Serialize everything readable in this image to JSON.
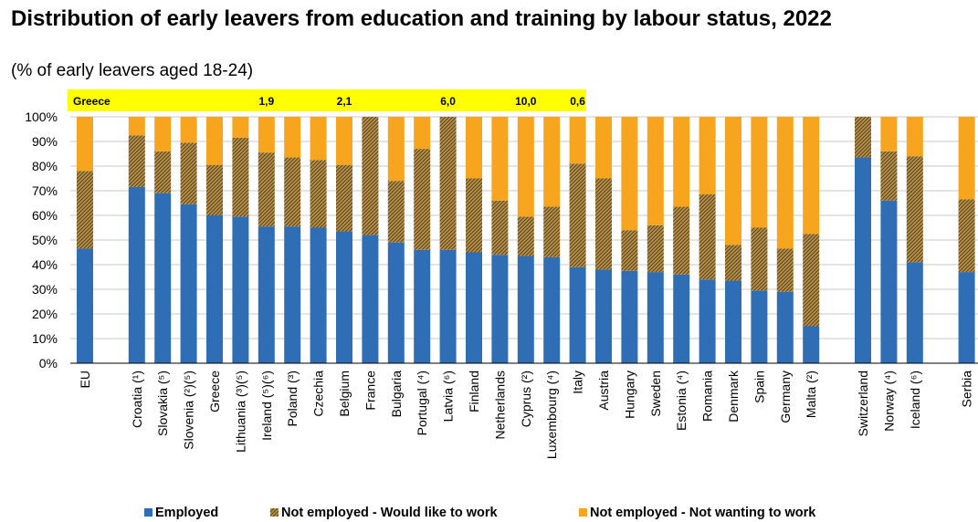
{
  "title": "Distribution of early leavers from education and training by labour status, 2022",
  "subtitle": "(% of early leavers aged 18-24)",
  "colors": {
    "employed": "#2f6db5",
    "would_like": "#b78f46",
    "not_wanting": "#f7a51e",
    "note_band": "#ffff00",
    "gridline": "#c9c9c9"
  },
  "note_band": {
    "country": "Greece",
    "values": [
      {
        "category": "Ireland (⁵)(⁶)",
        "value": "1,9"
      },
      {
        "category": "Belgium",
        "value": "2,1"
      },
      {
        "category": "Latvia (⁶)",
        "value": "6,0"
      },
      {
        "category": "Cyprus (²)",
        "value": "10,0"
      },
      {
        "category": "Italy",
        "value": "0,6"
      }
    ]
  },
  "legend": [
    {
      "key": "employed",
      "label": "Employed"
    },
    {
      "key": "would_like",
      "label": "Not employed - Would like to work"
    },
    {
      "key": "not_wanting",
      "label": "Not employed - Not wanting to work"
    }
  ],
  "chart_data": {
    "type": "bar",
    "stacked": true,
    "ylim": [
      0,
      100
    ],
    "y_ticks": [
      "0%",
      "10%",
      "20%",
      "30%",
      "40%",
      "50%",
      "60%",
      "70%",
      "80%",
      "90%",
      "100%"
    ],
    "grid": true,
    "legend_position": "bottom",
    "groups": [
      [
        "EU"
      ],
      [
        "Croatia (¹)",
        "Slovakia (⁵)",
        "Slovenia (²)(⁵)",
        "Greece",
        "Lithuania (³)(⁵)",
        "Ireland (⁵)(⁶)",
        "Poland (³)",
        "Czechia",
        "Belgium",
        "France",
        "Bulgaria",
        "Portugal (⁴)",
        "Latvia (⁶)",
        "Finland",
        "Netherlands",
        "Cyprus (²)",
        "Luxembourg (⁴)",
        "Italy",
        "Austria",
        "Hungary",
        "Sweden",
        "Estonia (⁴)",
        "Romania",
        "Denmark",
        "Spain",
        "Germany",
        "Malta (²)"
      ],
      [
        "Switzerland",
        "Norway (⁴)",
        "Iceland (⁶)"
      ],
      [
        "Serbia"
      ]
    ],
    "categories": [
      "EU",
      "Croatia (¹)",
      "Slovakia (⁵)",
      "Slovenia (²)(⁵)",
      "Greece",
      "Lithuania (³)(⁵)",
      "Ireland (⁵)(⁶)",
      "Poland (³)",
      "Czechia",
      "Belgium",
      "France",
      "Bulgaria",
      "Portugal (⁴)",
      "Latvia (⁶)",
      "Finland",
      "Netherlands",
      "Cyprus (²)",
      "Luxembourg (⁴)",
      "Italy",
      "Austria",
      "Hungary",
      "Sweden",
      "Estonia (⁴)",
      "Romania",
      "Denmark",
      "Spain",
      "Germany",
      "Malta (²)",
      "Switzerland",
      "Norway (⁴)",
      "Iceland (⁶)",
      "Serbia"
    ],
    "series": [
      {
        "key": "employed",
        "name": "Employed",
        "values": [
          46.5,
          71.5,
          69,
          64.5,
          60,
          59.5,
          55.5,
          55.5,
          55,
          53.5,
          52,
          49,
          46,
          46,
          45,
          44,
          43.5,
          43,
          39,
          38,
          37.5,
          37,
          36,
          34,
          33.5,
          29.5,
          29,
          15,
          83.5,
          66,
          41,
          37
        ]
      },
      {
        "key": "would_like",
        "name": "Not employed - Would like to work",
        "values": [
          31.5,
          21,
          17,
          25,
          20.5,
          32,
          30,
          28,
          27.5,
          27,
          48,
          25,
          41,
          54,
          30,
          22,
          16,
          20.5,
          42,
          37,
          16.5,
          19,
          27.5,
          34.5,
          14.5,
          25.5,
          17.5,
          37.5,
          16.5,
          20,
          43,
          29.5
        ]
      },
      {
        "key": "not_wanting",
        "name": "Not employed - Not wanting to work",
        "values": [
          22,
          7.5,
          14,
          10.5,
          19.5,
          8.5,
          14.5,
          16.5,
          17.5,
          19.5,
          0,
          26,
          13,
          0,
          25,
          34,
          40.5,
          36.5,
          19,
          25,
          46,
          44,
          36.5,
          31.5,
          52,
          45,
          53.5,
          47.5,
          0,
          14,
          16,
          33.5
        ]
      }
    ]
  }
}
